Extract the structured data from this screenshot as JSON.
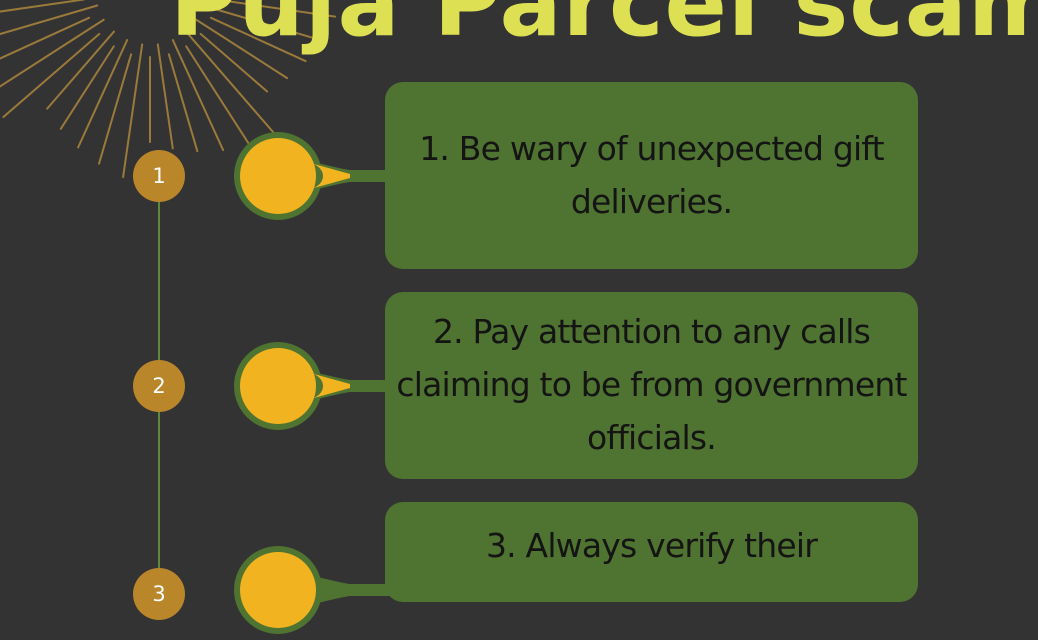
{
  "title": "Puja Parcel scam",
  "colors": {
    "background": "#333333",
    "title": "#dde053",
    "card": "#4f7330",
    "badge": "#b9862a",
    "circle_fill": "#f2b320",
    "line": "#5c8a3a",
    "sunburst": "#9a7a3a"
  },
  "items": [
    {
      "number": "1",
      "text": "1. Be wary of unexpected gift deliveries."
    },
    {
      "number": "2",
      "text": "2. Pay attention to any calls claiming to be from government officials."
    },
    {
      "number": "3",
      "text": "3. Always verify their"
    }
  ]
}
